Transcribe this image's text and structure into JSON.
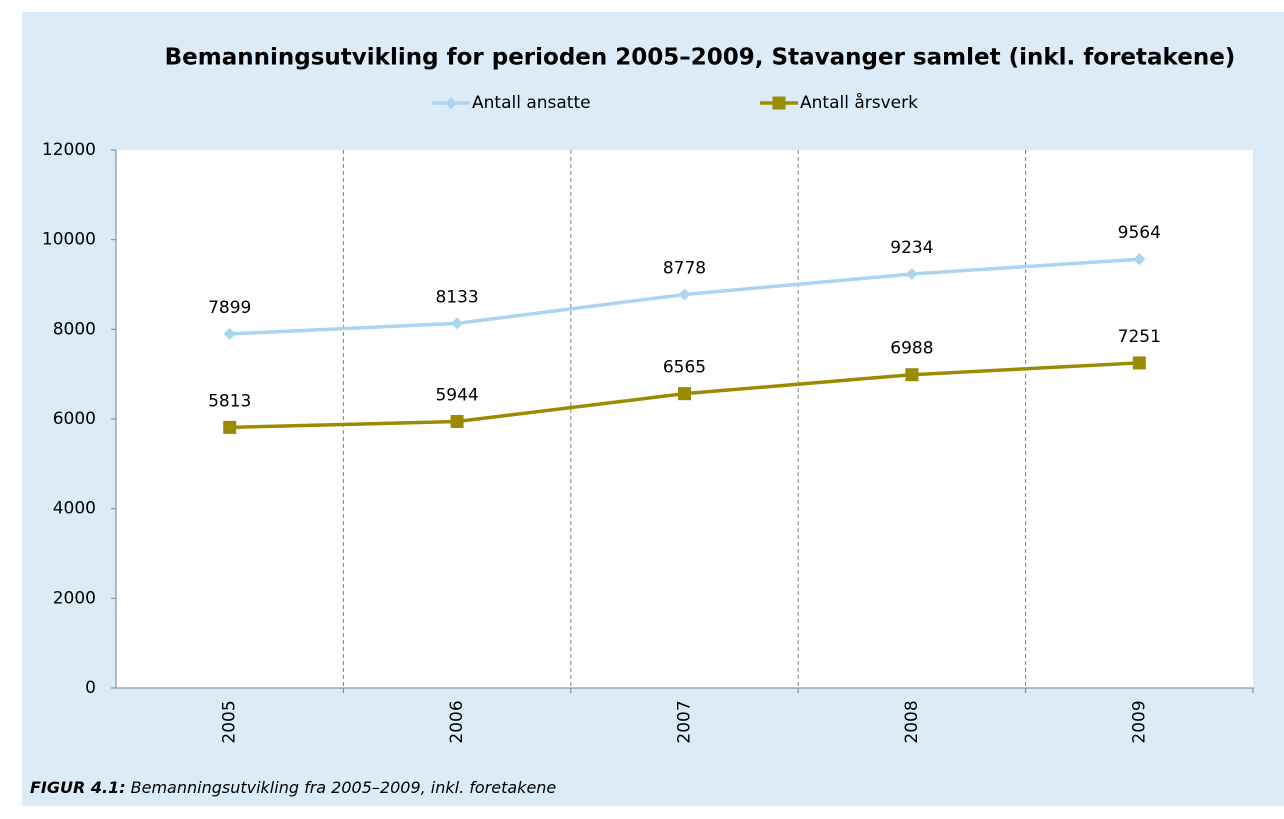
{
  "chart_data": {
    "type": "line",
    "title": "Bemanningsutvikling for perioden 2005–2009, Stavanger samlet (inkl. foretakene)",
    "categories": [
      "2005",
      "2006",
      "2007",
      "2008",
      "2009"
    ],
    "series": [
      {
        "name": "Antall ansatte",
        "color": "#a9d5ef",
        "marker": "diamond",
        "values": [
          7899,
          8133,
          8778,
          9234,
          9564
        ]
      },
      {
        "name": "Antall årsverk",
        "color": "#9b8b00",
        "marker": "square",
        "values": [
          5813,
          5944,
          6565,
          6988,
          7251
        ]
      }
    ],
    "ylim": [
      0,
      12000
    ],
    "yticks": [
      0,
      2000,
      4000,
      6000,
      8000,
      10000,
      12000
    ],
    "legend": "top",
    "caption": {
      "label": "FIGUR 4.1:",
      "text": "Bemanningsutvikling fra 2005–2009, inkl. foretakene"
    }
  }
}
